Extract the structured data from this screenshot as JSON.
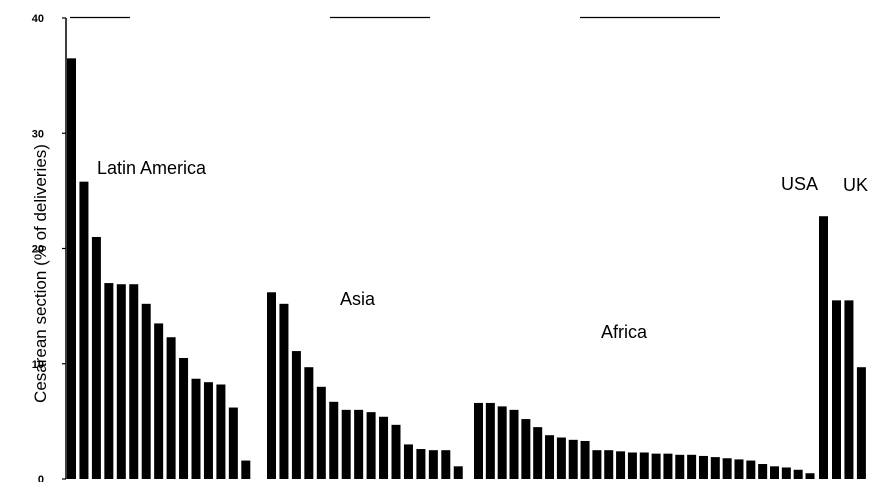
{
  "chart_data": {
    "type": "bar",
    "title": "",
    "xlabel": "",
    "ylabel": "Cesarean section (% of deliveries)",
    "ylim": [
      0,
      40
    ],
    "yticks": [
      "0",
      "10",
      "20",
      "30",
      "40"
    ],
    "grid": false,
    "legend": "none",
    "bar_color": "#000000",
    "groups": [
      {
        "name": "Latin America",
        "values": [
          36.5,
          25.8,
          21.0,
          17.0,
          16.9,
          16.9,
          15.2,
          13.5,
          12.3,
          10.5,
          8.7,
          8.4,
          8.2,
          6.2,
          1.6
        ]
      },
      {
        "name": "Asia",
        "values": [
          16.2,
          15.2,
          11.1,
          9.7,
          8.0,
          6.7,
          6.0,
          6.0,
          5.8,
          5.4,
          4.7,
          3.0,
          2.6,
          2.5,
          2.5,
          1.1
        ]
      },
      {
        "name": "Africa",
        "values": [
          6.6,
          6.6,
          6.3,
          6.0,
          5.2,
          4.5,
          3.8,
          3.6,
          3.4,
          3.3,
          2.5,
          2.5,
          2.4,
          2.3,
          2.3,
          2.2,
          2.2,
          2.1,
          2.1,
          2.0,
          1.9,
          1.8,
          1.7,
          1.6,
          1.3,
          1.1,
          1.0,
          0.8,
          0.5
        ]
      },
      {
        "name": "USA",
        "values": [
          22.8
        ]
      },
      {
        "name": "UK",
        "values": [
          15.5,
          15.5,
          9.7
        ]
      }
    ]
  }
}
